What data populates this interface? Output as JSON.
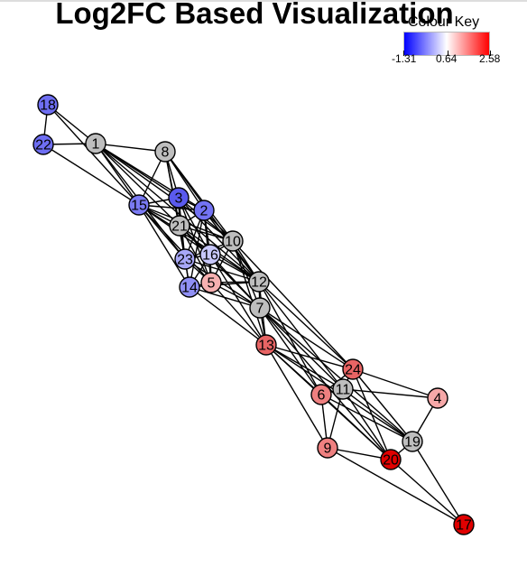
{
  "title": "Log2FC Based Visualization",
  "colour_key": {
    "title": "Colour Key",
    "min_label": "-1.31",
    "mid_label": "0.64",
    "max_label": "2.58",
    "colors": [
      "#0000ff",
      "#ffffff",
      "#ff0000"
    ]
  },
  "nodes": [
    {
      "id": "1",
      "label": "1",
      "fill": "#bebebe"
    },
    {
      "id": "2",
      "label": "2",
      "fill": "#7373f3"
    },
    {
      "id": "3",
      "label": "3",
      "fill": "#5a5aee"
    },
    {
      "id": "4",
      "label": "4",
      "fill": "#f6a8a8"
    },
    {
      "id": "5",
      "label": "5",
      "fill": "#f6b0b0"
    },
    {
      "id": "6",
      "label": "6",
      "fill": "#ee8080"
    },
    {
      "id": "7",
      "label": "7",
      "fill": "#bebebe"
    },
    {
      "id": "8",
      "label": "8",
      "fill": "#bebebe"
    },
    {
      "id": "9",
      "label": "9",
      "fill": "#ee8080"
    },
    {
      "id": "10",
      "label": "10",
      "fill": "#bebebe"
    },
    {
      "id": "11",
      "label": "11",
      "fill": "#bebebe"
    },
    {
      "id": "12",
      "label": "12",
      "fill": "#bebebe"
    },
    {
      "id": "13",
      "label": "13",
      "fill": "#e86464"
    },
    {
      "id": "14",
      "label": "14",
      "fill": "#9090f5"
    },
    {
      "id": "15",
      "label": "15",
      "fill": "#7a7af3"
    },
    {
      "id": "16",
      "label": "16",
      "fill": "#c8c8fb"
    },
    {
      "id": "17",
      "label": "17",
      "fill": "#e00000"
    },
    {
      "id": "18",
      "label": "18",
      "fill": "#6e6ef2"
    },
    {
      "id": "19",
      "label": "19",
      "fill": "#bebebe"
    },
    {
      "id": "20",
      "label": "20",
      "fill": "#e00000"
    },
    {
      "id": "21",
      "label": "21",
      "fill": "#bebebe"
    },
    {
      "id": "22",
      "label": "22",
      "fill": "#6e6ef2"
    },
    {
      "id": "23",
      "label": "23",
      "fill": "#a8a8f8"
    },
    {
      "id": "24",
      "label": "24",
      "fill": "#e86464"
    }
  ],
  "edges": [
    [
      "18",
      "22"
    ],
    [
      "18",
      "1"
    ],
    [
      "18",
      "15"
    ],
    [
      "22",
      "1"
    ],
    [
      "22",
      "15"
    ],
    [
      "1",
      "8"
    ],
    [
      "1",
      "15"
    ],
    [
      "1",
      "3"
    ],
    [
      "1",
      "2"
    ],
    [
      "1",
      "21"
    ],
    [
      "1",
      "23"
    ],
    [
      "1",
      "10"
    ],
    [
      "1",
      "12"
    ],
    [
      "8",
      "15"
    ],
    [
      "8",
      "3"
    ],
    [
      "8",
      "2"
    ],
    [
      "8",
      "21"
    ],
    [
      "8",
      "10"
    ],
    [
      "8",
      "12"
    ],
    [
      "8",
      "23"
    ],
    [
      "15",
      "3"
    ],
    [
      "15",
      "2"
    ],
    [
      "15",
      "21"
    ],
    [
      "15",
      "23"
    ],
    [
      "15",
      "16"
    ],
    [
      "15",
      "10"
    ],
    [
      "15",
      "14"
    ],
    [
      "15",
      "5"
    ],
    [
      "15",
      "12"
    ],
    [
      "3",
      "2"
    ],
    [
      "3",
      "21"
    ],
    [
      "3",
      "23"
    ],
    [
      "3",
      "16"
    ],
    [
      "3",
      "10"
    ],
    [
      "3",
      "12"
    ],
    [
      "3",
      "5"
    ],
    [
      "2",
      "21"
    ],
    [
      "2",
      "23"
    ],
    [
      "2",
      "16"
    ],
    [
      "2",
      "10"
    ],
    [
      "2",
      "12"
    ],
    [
      "2",
      "5"
    ],
    [
      "2",
      "14"
    ],
    [
      "21",
      "23"
    ],
    [
      "21",
      "16"
    ],
    [
      "21",
      "10"
    ],
    [
      "21",
      "5"
    ],
    [
      "21",
      "14"
    ],
    [
      "21",
      "12"
    ],
    [
      "21",
      "7"
    ],
    [
      "23",
      "16"
    ],
    [
      "23",
      "5"
    ],
    [
      "23",
      "14"
    ],
    [
      "23",
      "10"
    ],
    [
      "23",
      "12"
    ],
    [
      "23",
      "7"
    ],
    [
      "16",
      "10"
    ],
    [
      "16",
      "5"
    ],
    [
      "16",
      "14"
    ],
    [
      "16",
      "12"
    ],
    [
      "16",
      "7"
    ],
    [
      "16",
      "13"
    ],
    [
      "10",
      "12"
    ],
    [
      "10",
      "7"
    ],
    [
      "10",
      "5"
    ],
    [
      "10",
      "13"
    ],
    [
      "10",
      "24"
    ],
    [
      "14",
      "5"
    ],
    [
      "14",
      "12"
    ],
    [
      "14",
      "7"
    ],
    [
      "14",
      "13"
    ],
    [
      "5",
      "12"
    ],
    [
      "5",
      "7"
    ],
    [
      "5",
      "13"
    ],
    [
      "12",
      "7"
    ],
    [
      "12",
      "13"
    ],
    [
      "12",
      "24"
    ],
    [
      "12",
      "11"
    ],
    [
      "12",
      "6"
    ],
    [
      "7",
      "13"
    ],
    [
      "7",
      "24"
    ],
    [
      "7",
      "11"
    ],
    [
      "7",
      "6"
    ],
    [
      "7",
      "19"
    ],
    [
      "7",
      "20"
    ],
    [
      "13",
      "24"
    ],
    [
      "13",
      "11"
    ],
    [
      "13",
      "6"
    ],
    [
      "13",
      "9"
    ],
    [
      "13",
      "20"
    ],
    [
      "13",
      "19"
    ],
    [
      "24",
      "11"
    ],
    [
      "24",
      "6"
    ],
    [
      "24",
      "4"
    ],
    [
      "24",
      "19"
    ],
    [
      "24",
      "20"
    ],
    [
      "6",
      "11"
    ],
    [
      "6",
      "9"
    ],
    [
      "6",
      "20"
    ],
    [
      "6",
      "19"
    ],
    [
      "11",
      "9"
    ],
    [
      "11",
      "4"
    ],
    [
      "11",
      "19"
    ],
    [
      "11",
      "20"
    ],
    [
      "9",
      "20"
    ],
    [
      "4",
      "19"
    ],
    [
      "19",
      "20"
    ],
    [
      "20",
      "17"
    ],
    [
      "19",
      "17"
    ],
    [
      "9",
      "17"
    ]
  ]
}
